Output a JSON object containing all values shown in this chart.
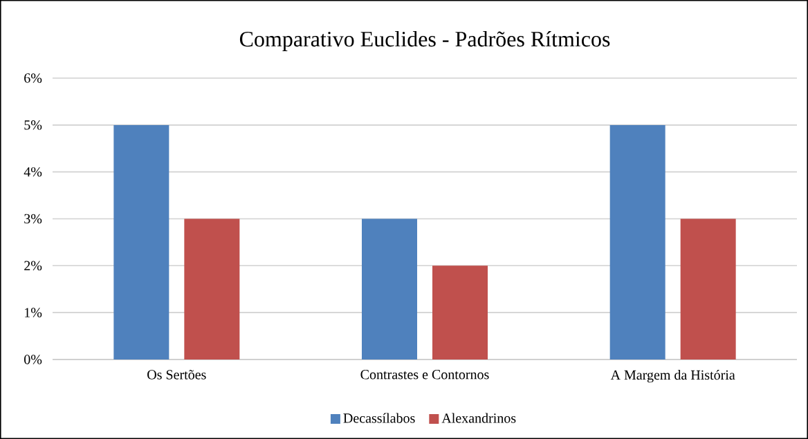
{
  "chart_data": {
    "type": "bar",
    "title": "Comparativo Euclides - Padrões Rítmicos",
    "categories": [
      "Os Sertões",
      "Contrastes e Contornos",
      "A Margem da História"
    ],
    "series": [
      {
        "name": "Decassílabos",
        "color": "#4f81bd",
        "values": [
          5,
          3,
          5
        ]
      },
      {
        "name": "Alexandrinos",
        "color": "#c0504d",
        "values": [
          3,
          2,
          3
        ]
      }
    ],
    "ylim": [
      0,
      6
    ],
    "yticks": [
      {
        "value": 0,
        "label": "0%"
      },
      {
        "value": 1,
        "label": "1%"
      },
      {
        "value": 2,
        "label": "2%"
      },
      {
        "value": 3,
        "label": "3%"
      },
      {
        "value": 4,
        "label": "4%"
      },
      {
        "value": 5,
        "label": "5%"
      },
      {
        "value": 6,
        "label": "6%"
      }
    ],
    "grid": "y",
    "legend": "bottom"
  }
}
